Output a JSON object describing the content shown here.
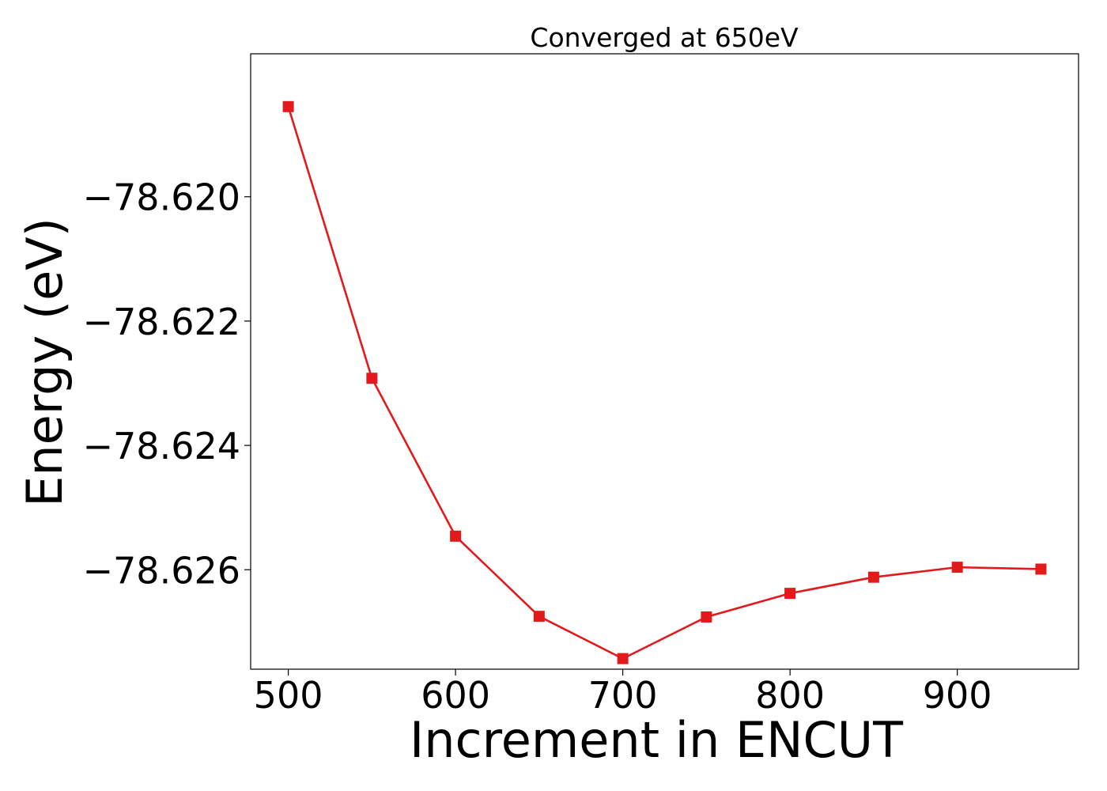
{
  "chart_data": {
    "type": "line",
    "title": "Converged at 650eV",
    "xlabel": "Increment in ENCUT",
    "ylabel": "Energy (eV)",
    "x": [
      500,
      550,
      600,
      650,
      700,
      750,
      800,
      850,
      900,
      950
    ],
    "series": [
      {
        "values": [
          -78.61855,
          -78.62292,
          -78.62546,
          -78.62675,
          -78.62743,
          -78.62676,
          -78.62638,
          -78.62612,
          -78.62596,
          -78.62599
        ],
        "color": "#e31a1c",
        "marker": "square"
      }
    ],
    "xlim": [
      477.5,
      972.5
    ],
    "ylim": [
      -78.6276,
      -78.6177
    ],
    "xticks": [
      500,
      600,
      700,
      800,
      900
    ],
    "xtick_labels": [
      "500",
      "600",
      "700",
      "800",
      "900"
    ],
    "yticks": [
      -78.62,
      -78.622,
      -78.624,
      -78.626
    ],
    "ytick_labels": [
      "−78.620",
      "−78.622",
      "−78.624",
      "−78.626"
    ],
    "grid": false,
    "legend": "none"
  }
}
